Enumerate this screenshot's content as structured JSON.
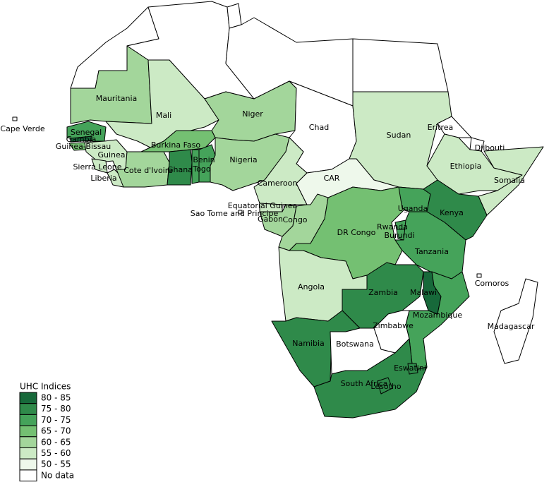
{
  "legend": {
    "title": "UHC Indices",
    "items": [
      {
        "label": "80 - 85",
        "color": "#17693a"
      },
      {
        "label": "75 - 80",
        "color": "#2f8a4a"
      },
      {
        "label": "70 - 75",
        "color": "#45a35a"
      },
      {
        "label": "65 - 70",
        "color": "#74c072"
      },
      {
        "label": "60 - 65",
        "color": "#a3d69b"
      },
      {
        "label": "55 - 60",
        "color": "#cceac5"
      },
      {
        "label": "50 - 55",
        "color": "#eef8eb"
      },
      {
        "label": "No data",
        "color": "#ffffff"
      }
    ]
  },
  "countries": [
    {
      "name": "Mauritania",
      "color": "#a3d69b"
    },
    {
      "name": "Mali",
      "color": "#cceac5"
    },
    {
      "name": "Niger",
      "color": "#a3d69b"
    },
    {
      "name": "Chad",
      "color": "#ffffff"
    },
    {
      "name": "Sudan",
      "color": "#cceac5"
    },
    {
      "name": "Eritrea",
      "color": "#ffffff"
    },
    {
      "name": "Djibouti",
      "color": "#ffffff"
    },
    {
      "name": "Ethiopia",
      "color": "#cceac5"
    },
    {
      "name": "Somalia",
      "color": "#cceac5"
    },
    {
      "name": "Senegal",
      "color": "#45a35a"
    },
    {
      "name": "Gambia",
      "color": "#17693a"
    },
    {
      "name": "Guinea-Bissau",
      "color": "#74c072"
    },
    {
      "name": "Guinea",
      "color": "#cceac5"
    },
    {
      "name": "Sierra Leone",
      "color": "#cceac5"
    },
    {
      "name": "Liberia",
      "color": "#cceac5"
    },
    {
      "name": "Cote d'Ivoire",
      "color": "#a3d69b"
    },
    {
      "name": "Burkina Faso",
      "color": "#74c072"
    },
    {
      "name": "Ghana",
      "color": "#2f8a4a"
    },
    {
      "name": "Togo",
      "color": "#45a35a"
    },
    {
      "name": "Benin",
      "color": "#45a35a"
    },
    {
      "name": "Nigeria",
      "color": "#a3d69b"
    },
    {
      "name": "Cameroon",
      "color": "#cceac5"
    },
    {
      "name": "CAR",
      "color": "#eef8eb"
    },
    {
      "name": "Equatorial Guinea",
      "color": "#cceac5"
    },
    {
      "name": "Gabon",
      "color": "#a3d69b"
    },
    {
      "name": "Congo",
      "color": "#a3d69b"
    },
    {
      "name": "DR Congo",
      "color": "#74c072"
    },
    {
      "name": "Uganda",
      "color": "#45a35a"
    },
    {
      "name": "Kenya",
      "color": "#2f8a4a"
    },
    {
      "name": "Rwanda",
      "color": "#45a35a"
    },
    {
      "name": "Burundi",
      "color": "#45a35a"
    },
    {
      "name": "Tanzania",
      "color": "#45a35a"
    },
    {
      "name": "Angola",
      "color": "#cceac5"
    },
    {
      "name": "Zambia",
      "color": "#2f8a4a"
    },
    {
      "name": "Malawi",
      "color": "#17693a"
    },
    {
      "name": "Mozambique",
      "color": "#45a35a"
    },
    {
      "name": "Zimbabwe",
      "color": "#ffffff"
    },
    {
      "name": "Namibia",
      "color": "#2f8a4a"
    },
    {
      "name": "Botswana",
      "color": "#ffffff"
    },
    {
      "name": "South Africa",
      "color": "#2f8a4a"
    },
    {
      "name": "Lesotho",
      "color": "#2f8a4a"
    },
    {
      "name": "Eswatini",
      "color": "#2f8a4a"
    },
    {
      "name": "Madagascar",
      "color": "#ffffff"
    },
    {
      "name": "Comoros",
      "color": "#ffffff"
    },
    {
      "name": "Cape Verde",
      "color": "#ffffff"
    },
    {
      "name": "Sao Tome and Principe",
      "color": "#ffffff"
    }
  ]
}
